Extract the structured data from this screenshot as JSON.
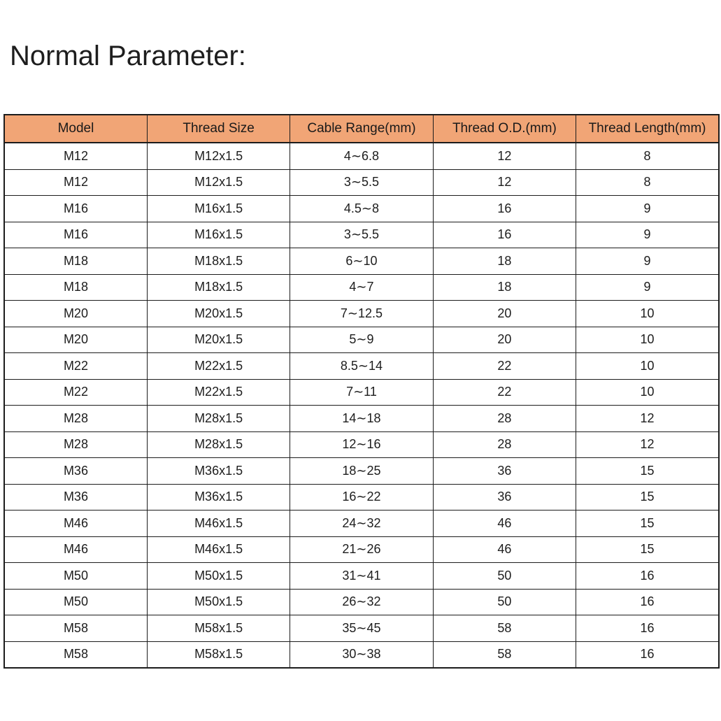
{
  "page": {
    "title": "Normal Parameter:"
  },
  "colors": {
    "background": "#ffffff",
    "header_bg": "#f1a576",
    "border": "#1c1c1c",
    "text": "#1d1d1d"
  },
  "table": {
    "columns": [
      "Model",
      "Thread Size",
      "Cable Range(mm)",
      "Thread O.D.(mm)",
      "Thread Length(mm)"
    ],
    "rows": [
      [
        "M12",
        "M12x1.5",
        "4∼6.8",
        "12",
        "8"
      ],
      [
        "M12",
        "M12x1.5",
        "3∼5.5",
        "12",
        "8"
      ],
      [
        "M16",
        "M16x1.5",
        "4.5∼8",
        "16",
        "9"
      ],
      [
        "M16",
        "M16x1.5",
        "3∼5.5",
        "16",
        "9"
      ],
      [
        "M18",
        "M18x1.5",
        "6∼10",
        "18",
        "9"
      ],
      [
        "M18",
        "M18x1.5",
        "4∼7",
        "18",
        "9"
      ],
      [
        "M20",
        "M20x1.5",
        "7∼12.5",
        "20",
        "10"
      ],
      [
        "M20",
        "M20x1.5",
        "5∼9",
        "20",
        "10"
      ],
      [
        "M22",
        "M22x1.5",
        "8.5∼14",
        "22",
        "10"
      ],
      [
        "M22",
        "M22x1.5",
        "7∼11",
        "22",
        "10"
      ],
      [
        "M28",
        "M28x1.5",
        "14∼18",
        "28",
        "12"
      ],
      [
        "M28",
        "M28x1.5",
        "12∼16",
        "28",
        "12"
      ],
      [
        "M36",
        "M36x1.5",
        "18∼25",
        "36",
        "15"
      ],
      [
        "M36",
        "M36x1.5",
        "16∼22",
        "36",
        "15"
      ],
      [
        "M46",
        "M46x1.5",
        "24∼32",
        "46",
        "15"
      ],
      [
        "M46",
        "M46x1.5",
        "21∼26",
        "46",
        "15"
      ],
      [
        "M50",
        "M50x1.5",
        "31∼41",
        "50",
        "16"
      ],
      [
        "M50",
        "M50x1.5",
        "26∼32",
        "50",
        "16"
      ],
      [
        "M58",
        "M58x1.5",
        "35∼45",
        "58",
        "16"
      ],
      [
        "M58",
        "M58x1.5",
        "30∼38",
        "58",
        "16"
      ]
    ]
  }
}
